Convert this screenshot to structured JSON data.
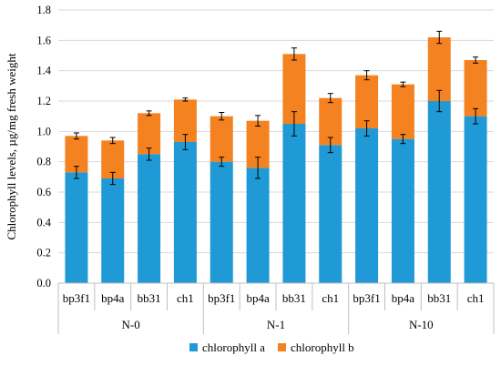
{
  "chart_data": {
    "type": "bar",
    "stacked": true,
    "ylabel": "Chlorophyll levels, µg/mg fresh weight",
    "ylim": [
      0,
      1.8
    ],
    "yticks": [
      "0.0",
      "0.2",
      "0.4",
      "0.6",
      "0.8",
      "1.0",
      "1.2",
      "1.4",
      "1.6",
      "1.8"
    ],
    "groups": [
      "N-0",
      "N-1",
      "N-10"
    ],
    "categories": [
      "bp3f1",
      "bp4a",
      "bb31",
      "ch1",
      "bp3f1",
      "bp4a",
      "bb31",
      "ch1",
      "bp3f1",
      "bp4a",
      "bb31",
      "ch1"
    ],
    "series": [
      {
        "name": "chlorophyll a",
        "color": "#1f9ad6",
        "values": [
          0.73,
          0.69,
          0.85,
          0.93,
          0.8,
          0.76,
          1.05,
          0.91,
          1.02,
          0.95,
          1.2,
          1.1
        ],
        "errors": [
          0.04,
          0.04,
          0.04,
          0.05,
          0.03,
          0.07,
          0.08,
          0.05,
          0.05,
          0.03,
          0.07,
          0.05
        ]
      },
      {
        "name": "chlorophyll b",
        "color": "#f58220",
        "values": [
          0.24,
          0.25,
          0.27,
          0.28,
          0.3,
          0.31,
          0.46,
          0.31,
          0.35,
          0.36,
          0.42,
          0.37
        ],
        "errors": [
          0.02,
          0.02,
          0.015,
          0.01,
          0.025,
          0.035,
          0.04,
          0.03,
          0.03,
          0.015,
          0.04,
          0.02
        ]
      }
    ],
    "legend_position": "bottom",
    "grid": true
  }
}
